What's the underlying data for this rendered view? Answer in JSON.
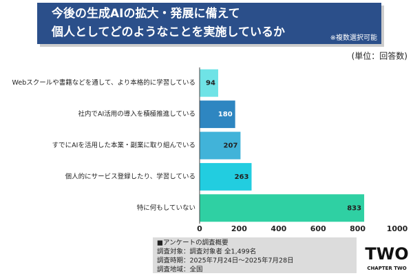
{
  "chart_data": {
    "type": "bar",
    "orientation": "horizontal",
    "title": [
      "今後の生成AIの拡大・発展に備えて",
      "個人としてどのようなことを実施しているか"
    ],
    "subtitle": "※複数選択可能",
    "unit_label": "(単位：回答数)",
    "categories": [
      "Webスクールや書籍などを通して、より本格的に学習している",
      "社内でAI活用の導入を積極推進している",
      "すでにAIを活用した本業・副業に取り組んでいる",
      "個人的にサービス登録したり、学習している",
      "特に何もしていない"
    ],
    "values": [
      94,
      180,
      207,
      263,
      833
    ],
    "colors": [
      "#6fe3e6",
      "#2e86c1",
      "#41b3d9",
      "#22cde0",
      "#2fd0a3"
    ],
    "xlim": [
      0,
      1000
    ],
    "xticks": [
      0,
      200,
      400,
      600,
      800,
      1000
    ],
    "grid": false,
    "survey": [
      "■アンケートの調査概要",
      "調査対象：調査対象者 全1,499名",
      "調査時期：2025年7月24日〜2025年7月28日",
      "調査地域：全国"
    ],
    "logo": [
      "TWO",
      "CHAPTER TWO"
    ]
  }
}
